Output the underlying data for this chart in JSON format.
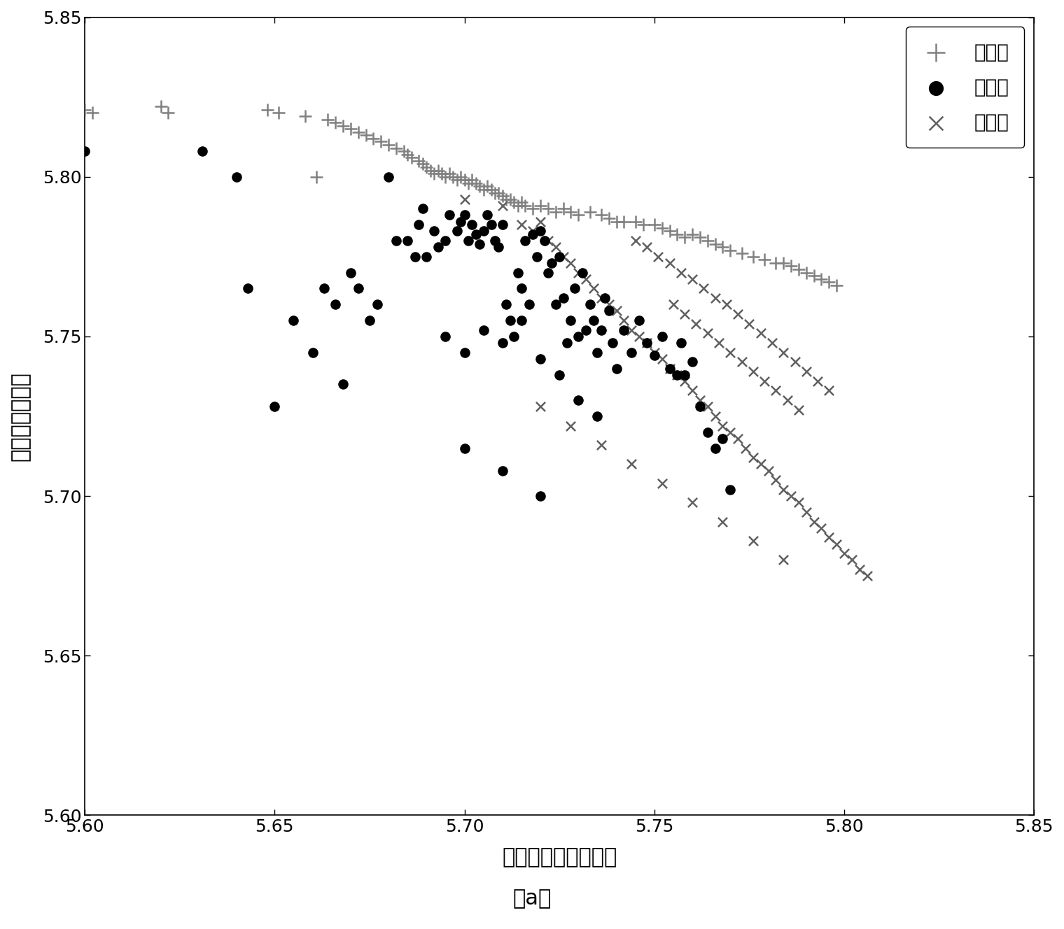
{
  "title": "（a）",
  "xlabel": "多普勒域波形熵均值",
  "ylabel": "时域波形熵均值",
  "xlim": [
    5.6,
    5.85
  ],
  "ylim": [
    5.6,
    5.85
  ],
  "xticks": [
    5.6,
    5.65,
    5.7,
    5.75,
    5.8,
    5.85
  ],
  "yticks": [
    5.6,
    5.65,
    5.7,
    5.75,
    5.8,
    5.85
  ],
  "legend_labels": [
    "喷气式",
    "螺旋桨",
    "直升机"
  ],
  "jet_color": "#808080",
  "prop_color": "#000000",
  "heli_color": "#606060",
  "background_color": "#ffffff",
  "jet_x": [
    5.6,
    5.602,
    5.62,
    5.622,
    5.648,
    5.651,
    5.658,
    5.661,
    5.664,
    5.666,
    5.668,
    5.67,
    5.672,
    5.674,
    5.676,
    5.678,
    5.68,
    5.682,
    5.684,
    5.685,
    5.686,
    5.688,
    5.689,
    5.69,
    5.691,
    5.692,
    5.693,
    5.694,
    5.695,
    5.696,
    5.697,
    5.698,
    5.699,
    5.7,
    5.701,
    5.702,
    5.703,
    5.704,
    5.705,
    5.706,
    5.707,
    5.708,
    5.709,
    5.71,
    5.711,
    5.712,
    5.713,
    5.714,
    5.715,
    5.716,
    5.718,
    5.72,
    5.722,
    5.724,
    5.726,
    5.728,
    5.73,
    5.733,
    5.736,
    5.738,
    5.74,
    5.742,
    5.745,
    5.747,
    5.75,
    5.752,
    5.754,
    5.756,
    5.758,
    5.76,
    5.762,
    5.764,
    5.766,
    5.768,
    5.77,
    5.773,
    5.776,
    5.779,
    5.782,
    5.784,
    5.786,
    5.788,
    5.79,
    5.792,
    5.794,
    5.796,
    5.798
  ],
  "jet_y": [
    5.821,
    5.82,
    5.822,
    5.82,
    5.821,
    5.82,
    5.819,
    5.8,
    5.818,
    5.817,
    5.816,
    5.815,
    5.814,
    5.813,
    5.812,
    5.811,
    5.81,
    5.809,
    5.808,
    5.807,
    5.806,
    5.805,
    5.804,
    5.803,
    5.802,
    5.801,
    5.802,
    5.801,
    5.8,
    5.801,
    5.8,
    5.799,
    5.8,
    5.799,
    5.798,
    5.799,
    5.798,
    5.797,
    5.796,
    5.797,
    5.796,
    5.795,
    5.795,
    5.794,
    5.793,
    5.793,
    5.792,
    5.791,
    5.792,
    5.791,
    5.79,
    5.791,
    5.79,
    5.789,
    5.79,
    5.789,
    5.788,
    5.789,
    5.788,
    5.787,
    5.786,
    5.786,
    5.786,
    5.785,
    5.785,
    5.784,
    5.783,
    5.782,
    5.781,
    5.782,
    5.781,
    5.78,
    5.779,
    5.778,
    5.777,
    5.776,
    5.775,
    5.774,
    5.773,
    5.773,
    5.772,
    5.771,
    5.77,
    5.769,
    5.768,
    5.767,
    5.766
  ],
  "prop_x": [
    5.6,
    5.631,
    5.64,
    5.643,
    5.65,
    5.655,
    5.66,
    5.663,
    5.666,
    5.668,
    5.67,
    5.672,
    5.675,
    5.677,
    5.68,
    5.682,
    5.685,
    5.687,
    5.688,
    5.689,
    5.69,
    5.692,
    5.693,
    5.695,
    5.696,
    5.698,
    5.699,
    5.7,
    5.701,
    5.702,
    5.703,
    5.704,
    5.705,
    5.706,
    5.707,
    5.708,
    5.709,
    5.71,
    5.711,
    5.712,
    5.713,
    5.714,
    5.715,
    5.716,
    5.717,
    5.718,
    5.719,
    5.72,
    5.721,
    5.722,
    5.723,
    5.724,
    5.725,
    5.726,
    5.727,
    5.728,
    5.729,
    5.73,
    5.731,
    5.732,
    5.733,
    5.734,
    5.735,
    5.736,
    5.737,
    5.738,
    5.739,
    5.74,
    5.742,
    5.744,
    5.746,
    5.748,
    5.75,
    5.752,
    5.754,
    5.756,
    5.757,
    5.758,
    5.76,
    5.762,
    5.764,
    5.766,
    5.768,
    5.77,
    5.695,
    5.7,
    5.705,
    5.71,
    5.715,
    5.72,
    5.725,
    5.73,
    5.735,
    5.7,
    5.71,
    5.72
  ],
  "prop_y": [
    5.808,
    5.808,
    5.8,
    5.765,
    5.728,
    5.755,
    5.745,
    5.765,
    5.76,
    5.735,
    5.77,
    5.765,
    5.755,
    5.76,
    5.8,
    5.78,
    5.78,
    5.775,
    5.785,
    5.79,
    5.775,
    5.783,
    5.778,
    5.78,
    5.788,
    5.783,
    5.786,
    5.788,
    5.78,
    5.785,
    5.782,
    5.779,
    5.783,
    5.788,
    5.785,
    5.78,
    5.778,
    5.785,
    5.76,
    5.755,
    5.75,
    5.77,
    5.765,
    5.78,
    5.76,
    5.782,
    5.775,
    5.783,
    5.78,
    5.77,
    5.773,
    5.76,
    5.775,
    5.762,
    5.748,
    5.755,
    5.765,
    5.75,
    5.77,
    5.752,
    5.76,
    5.755,
    5.745,
    5.752,
    5.762,
    5.758,
    5.748,
    5.74,
    5.752,
    5.745,
    5.755,
    5.748,
    5.744,
    5.75,
    5.74,
    5.738,
    5.748,
    5.738,
    5.742,
    5.728,
    5.72,
    5.715,
    5.718,
    5.702,
    5.75,
    5.745,
    5.752,
    5.748,
    5.755,
    5.743,
    5.738,
    5.73,
    5.725,
    5.715,
    5.708,
    5.7
  ],
  "heli_x": [
    5.7,
    5.71,
    5.715,
    5.718,
    5.72,
    5.722,
    5.724,
    5.726,
    5.728,
    5.73,
    5.732,
    5.734,
    5.736,
    5.738,
    5.74,
    5.742,
    5.744,
    5.746,
    5.748,
    5.75,
    5.752,
    5.754,
    5.756,
    5.758,
    5.76,
    5.762,
    5.764,
    5.766,
    5.768,
    5.77,
    5.772,
    5.774,
    5.776,
    5.778,
    5.78,
    5.782,
    5.784,
    5.786,
    5.788,
    5.79,
    5.792,
    5.794,
    5.796,
    5.798,
    5.8,
    5.802,
    5.804,
    5.806,
    5.745,
    5.748,
    5.751,
    5.754,
    5.757,
    5.76,
    5.763,
    5.766,
    5.769,
    5.772,
    5.775,
    5.778,
    5.781,
    5.784,
    5.787,
    5.79,
    5.793,
    5.796,
    5.755,
    5.758,
    5.761,
    5.764,
    5.767,
    5.77,
    5.773,
    5.776,
    5.779,
    5.782,
    5.785,
    5.788,
    5.72,
    5.728,
    5.736,
    5.744,
    5.752,
    5.76,
    5.768,
    5.776,
    5.784
  ],
  "heli_y": [
    5.793,
    5.791,
    5.785,
    5.783,
    5.786,
    5.78,
    5.778,
    5.775,
    5.773,
    5.77,
    5.768,
    5.765,
    5.762,
    5.76,
    5.758,
    5.755,
    5.752,
    5.75,
    5.748,
    5.745,
    5.743,
    5.74,
    5.738,
    5.736,
    5.733,
    5.73,
    5.728,
    5.725,
    5.722,
    5.72,
    5.718,
    5.715,
    5.712,
    5.71,
    5.708,
    5.705,
    5.702,
    5.7,
    5.698,
    5.695,
    5.692,
    5.69,
    5.687,
    5.685,
    5.682,
    5.68,
    5.677,
    5.675,
    5.78,
    5.778,
    5.775,
    5.773,
    5.77,
    5.768,
    5.765,
    5.762,
    5.76,
    5.757,
    5.754,
    5.751,
    5.748,
    5.745,
    5.742,
    5.739,
    5.736,
    5.733,
    5.76,
    5.757,
    5.754,
    5.751,
    5.748,
    5.745,
    5.742,
    5.739,
    5.736,
    5.733,
    5.73,
    5.727,
    5.728,
    5.722,
    5.716,
    5.71,
    5.704,
    5.698,
    5.692,
    5.686,
    5.68
  ]
}
